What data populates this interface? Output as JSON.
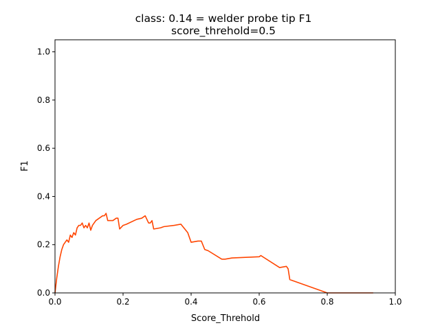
{
  "chart_data": {
    "type": "line",
    "title": "class: 0.14 = welder probe tip F1",
    "subtitle": "score_threhold=0.5",
    "xlabel": "Score_Threhold",
    "ylabel": "F1",
    "xlim": [
      0.0,
      1.0
    ],
    "ylim": [
      0.0,
      1.05
    ],
    "xticks": [
      "0.0",
      "0.2",
      "0.4",
      "0.6",
      "0.8",
      "1.0"
    ],
    "yticks": [
      "0.0",
      "0.2",
      "0.4",
      "0.6",
      "0.8",
      "1.0"
    ],
    "xtick_values": [
      0.0,
      0.2,
      0.4,
      0.6,
      0.8,
      1.0
    ],
    "ytick_values": [
      0.0,
      0.2,
      0.4,
      0.6,
      0.8,
      1.0
    ],
    "grid": false,
    "legend": "none",
    "line_color": "#ff4500",
    "series": [
      {
        "x": [
          0.0,
          0.005,
          0.01,
          0.015,
          0.02,
          0.025,
          0.03,
          0.035,
          0.04,
          0.045,
          0.05,
          0.055,
          0.06,
          0.065,
          0.07,
          0.075,
          0.08,
          0.085,
          0.09,
          0.095,
          0.1,
          0.105,
          0.11,
          0.115,
          0.12,
          0.13,
          0.14,
          0.145,
          0.15,
          0.155,
          0.17,
          0.18,
          0.185,
          0.19,
          0.2,
          0.21,
          0.24,
          0.255,
          0.26,
          0.265,
          0.27,
          0.275,
          0.28,
          0.285,
          0.29,
          0.31,
          0.32,
          0.35,
          0.37,
          0.39,
          0.4,
          0.42,
          0.43,
          0.44,
          0.45,
          0.49,
          0.5,
          0.52,
          0.6,
          0.605,
          0.66,
          0.68,
          0.685,
          0.69,
          0.8,
          0.935
        ],
        "y": [
          0.0,
          0.06,
          0.11,
          0.15,
          0.18,
          0.2,
          0.21,
          0.22,
          0.21,
          0.24,
          0.23,
          0.25,
          0.24,
          0.27,
          0.28,
          0.28,
          0.29,
          0.27,
          0.28,
          0.27,
          0.29,
          0.26,
          0.28,
          0.29,
          0.3,
          0.31,
          0.32,
          0.32,
          0.33,
          0.3,
          0.3,
          0.31,
          0.31,
          0.265,
          0.28,
          0.285,
          0.305,
          0.31,
          0.315,
          0.32,
          0.305,
          0.29,
          0.29,
          0.3,
          0.265,
          0.27,
          0.275,
          0.28,
          0.285,
          0.25,
          0.21,
          0.215,
          0.215,
          0.18,
          0.175,
          0.14,
          0.14,
          0.145,
          0.15,
          0.155,
          0.105,
          0.11,
          0.1,
          0.055,
          0.0,
          0.0
        ]
      }
    ]
  }
}
